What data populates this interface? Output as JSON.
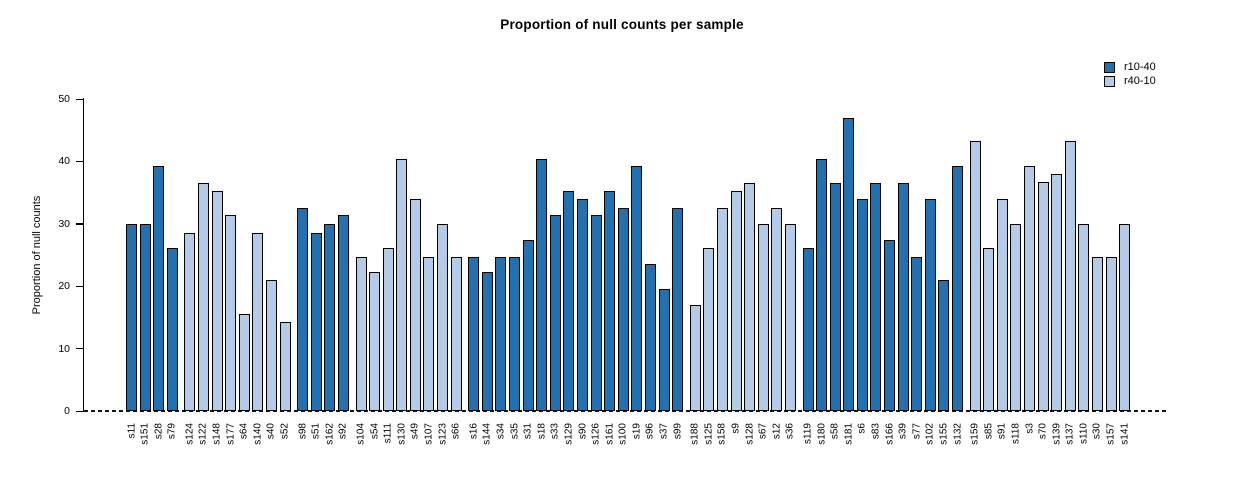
{
  "chart_data": {
    "type": "bar",
    "title": "Proportion of null counts per sample",
    "ylabel": "Proportion of null counts",
    "xlabel": "",
    "ylim": [
      0,
      50
    ],
    "yticks": [
      0,
      10,
      20,
      30,
      40,
      50
    ],
    "grid": false,
    "legend_position": "top-right",
    "baseline_style": "dashed",
    "bar_border_color": "#000000",
    "legend": [
      {
        "name": "r10-40",
        "color": "#2071b2"
      },
      {
        "name": "r40-10",
        "color": "#b3cae8"
      }
    ],
    "groups": [
      {
        "series": "r10-40",
        "samples": [
          {
            "label": "s11",
            "value": 29.9
          },
          {
            "label": "s151",
            "value": 29.9
          },
          {
            "label": "s28",
            "value": 39.2
          },
          {
            "label": "s79",
            "value": 26.1
          }
        ]
      },
      {
        "series": "r40-10",
        "samples": [
          {
            "label": "s124",
            "value": 28.6
          },
          {
            "label": "s122",
            "value": 36.5
          },
          {
            "label": "s148",
            "value": 35.2
          },
          {
            "label": "s177",
            "value": 31.4
          },
          {
            "label": "s64",
            "value": 15.5
          },
          {
            "label": "s140",
            "value": 28.6
          },
          {
            "label": "s40",
            "value": 21.0
          },
          {
            "label": "s52",
            "value": 14.3
          }
        ]
      },
      {
        "series": "r10-40",
        "samples": [
          {
            "label": "s98",
            "value": 32.6
          },
          {
            "label": "s51",
            "value": 28.6
          },
          {
            "label": "s162",
            "value": 29.9
          },
          {
            "label": "s92",
            "value": 31.4
          }
        ]
      },
      {
        "series": "r40-10",
        "samples": [
          {
            "label": "s104",
            "value": 24.7
          },
          {
            "label": "s54",
            "value": 22.2
          },
          {
            "label": "s111",
            "value": 26.1
          },
          {
            "label": "s130",
            "value": 40.4
          },
          {
            "label": "s49",
            "value": 34.0
          },
          {
            "label": "s107",
            "value": 24.7
          },
          {
            "label": "s123",
            "value": 29.9
          },
          {
            "label": "s66",
            "value": 24.7
          }
        ]
      },
      {
        "series": "r10-40",
        "samples": [
          {
            "label": "s16",
            "value": 24.7
          },
          {
            "label": "s144",
            "value": 22.2
          },
          {
            "label": "s34",
            "value": 24.7
          },
          {
            "label": "s35",
            "value": 24.7
          },
          {
            "label": "s31",
            "value": 27.4
          },
          {
            "label": "s18",
            "value": 40.4
          },
          {
            "label": "s33",
            "value": 31.4
          },
          {
            "label": "s129",
            "value": 35.2
          },
          {
            "label": "s90",
            "value": 34.0
          },
          {
            "label": "s126",
            "value": 31.4
          },
          {
            "label": "s161",
            "value": 35.2
          },
          {
            "label": "s100",
            "value": 32.6
          },
          {
            "label": "s19",
            "value": 39.2
          },
          {
            "label": "s96",
            "value": 23.5
          },
          {
            "label": "s37",
            "value": 19.6
          },
          {
            "label": "s99",
            "value": 32.6
          }
        ]
      },
      {
        "series": "r40-10",
        "samples": [
          {
            "label": "s188",
            "value": 17.0
          },
          {
            "label": "s125",
            "value": 26.1
          },
          {
            "label": "s158",
            "value": 32.6
          },
          {
            "label": "s9",
            "value": 35.2
          },
          {
            "label": "s128",
            "value": 36.5
          },
          {
            "label": "s67",
            "value": 29.9
          },
          {
            "label": "s12",
            "value": 32.6
          },
          {
            "label": "s36",
            "value": 29.9
          }
        ]
      },
      {
        "series": "r10-40",
        "samples": [
          {
            "label": "s119",
            "value": 26.1
          },
          {
            "label": "s180",
            "value": 40.4
          },
          {
            "label": "s58",
            "value": 36.5
          },
          {
            "label": "s181",
            "value": 46.9
          },
          {
            "label": "s6",
            "value": 34.0
          },
          {
            "label": "s83",
            "value": 36.5
          },
          {
            "label": "s166",
            "value": 27.4
          },
          {
            "label": "s39",
            "value": 36.5
          },
          {
            "label": "s77",
            "value": 24.7
          },
          {
            "label": "s102",
            "value": 34.0
          },
          {
            "label": "s155",
            "value": 21.0
          },
          {
            "label": "s132",
            "value": 39.2
          }
        ]
      },
      {
        "series": "r40-10",
        "samples": [
          {
            "label": "s159",
            "value": 43.2
          },
          {
            "label": "s85",
            "value": 26.1
          },
          {
            "label": "s91",
            "value": 34.0
          },
          {
            "label": "s118",
            "value": 29.9
          },
          {
            "label": "s3",
            "value": 39.2
          },
          {
            "label": "s70",
            "value": 36.7
          },
          {
            "label": "s139",
            "value": 38.0
          },
          {
            "label": "s137",
            "value": 43.2
          },
          {
            "label": "s110",
            "value": 29.9
          },
          {
            "label": "s30",
            "value": 24.7
          },
          {
            "label": "s157",
            "value": 24.7
          },
          {
            "label": "s141",
            "value": 29.9
          }
        ]
      }
    ]
  }
}
